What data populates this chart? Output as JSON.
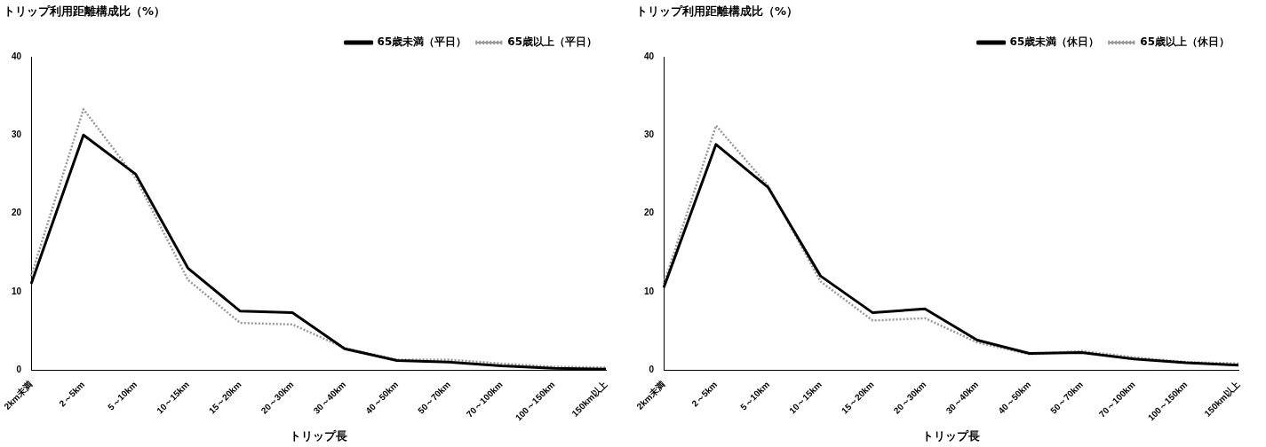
{
  "chart_data": [
    {
      "type": "line",
      "title": "トリップ利用距離構成比（%）",
      "xlabel": "トリップ長",
      "categories": [
        "2km未満",
        "2～5km",
        "5～10km",
        "10～15km",
        "15～20km",
        "20～30km",
        "30～40km",
        "40～50km",
        "50～70km",
        "70～100km",
        "100～150km",
        "150km以上"
      ],
      "ylim": [
        0,
        40
      ],
      "yticks": [
        0,
        10,
        20,
        30,
        40
      ],
      "legend": "top right",
      "grid": false,
      "marker": "none",
      "series": [
        {
          "name": "65歳未満（平日）",
          "color": "#000000",
          "line_style": "solid",
          "values": [
            11,
            30,
            25,
            13,
            7.5,
            7.3,
            2.7,
            1.2,
            1.0,
            0.5,
            0.2,
            0.1
          ]
        },
        {
          "name": "65歳以上（平日）",
          "color": "#999999",
          "line_style": "dotted",
          "values": [
            12,
            33.3,
            24.5,
            11.5,
            6,
            5.8,
            2.8,
            1.3,
            1.3,
            0.8,
            0.4,
            0.3
          ]
        }
      ]
    },
    {
      "type": "line",
      "title": "トリップ利用距離構成比（%）",
      "xlabel": "トリップ長",
      "categories": [
        "2km未満",
        "2～5km",
        "5～10km",
        "10～15km",
        "15～20km",
        "20～30km",
        "30～40km",
        "40～50km",
        "50～70km",
        "70～100km",
        "100～150km",
        "150km以上"
      ],
      "ylim": [
        0,
        40
      ],
      "yticks": [
        0,
        10,
        20,
        30,
        40
      ],
      "legend": "top right",
      "grid": false,
      "marker": "none",
      "series": [
        {
          "name": "65歳未満（休日）",
          "color": "#000000",
          "line_style": "solid",
          "values": [
            10.5,
            28.8,
            23.3,
            12,
            7.3,
            7.8,
            3.8,
            2.1,
            2.2,
            1.4,
            0.9,
            0.6
          ]
        },
        {
          "name": "65歳以上（休日）",
          "color": "#999999",
          "line_style": "dotted",
          "values": [
            11,
            31.2,
            23.5,
            11.3,
            6.3,
            6.6,
            3.5,
            2.0,
            2.4,
            1.6,
            1.0,
            0.8
          ]
        }
      ]
    }
  ]
}
